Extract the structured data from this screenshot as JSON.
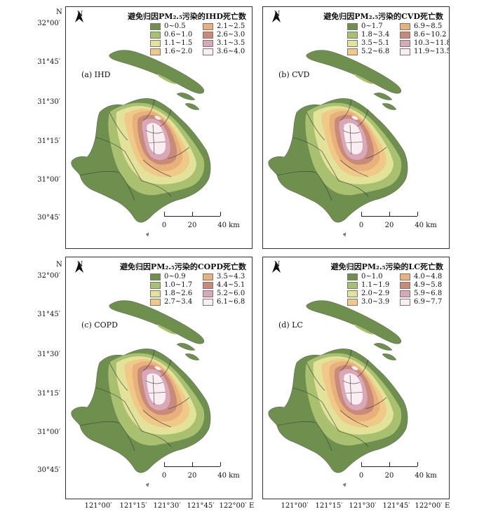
{
  "axes": {
    "north_letter": "N",
    "east_letter": "E",
    "lat_labels": [
      "32°00′",
      "31°45′",
      "31°30′",
      "31°15′",
      "31°00′",
      "30°45′"
    ],
    "lon_labels": [
      "121°00′",
      "121°15′",
      "121°30′",
      "121°45′",
      "122°00′"
    ]
  },
  "north_arrow": "N",
  "scale_bar": {
    "ticks": [
      "0",
      "20",
      "40 km"
    ]
  },
  "panels": [
    {
      "label": "(a) IHD",
      "title": "避免归因PM₂.₅污染的IHD死亡数",
      "legend": [
        "0~0.5",
        "2.1~2.5",
        "0.6~1.0",
        "2.6~3.0",
        "1.1~1.5",
        "3.1~3.5",
        "1.6~2.0",
        "3.6~4.0"
      ]
    },
    {
      "label": "(b) CVD",
      "title": "避免归因PM₂.₅污染的CVD死亡数",
      "legend": [
        "0~1.7",
        "6.9~8.5",
        "1.8~3.4",
        "8.6~10.2",
        "3.5~5.1",
        "10.3~11.8",
        "5.2~6.8",
        "11.9~13.5"
      ]
    },
    {
      "label": "(c) COPD",
      "title": "避免归因PM₂.₅污染的COPD死亡数",
      "legend": [
        "0~0.9",
        "3.5~4.3",
        "1.0~1.7",
        "4.4~5.1",
        "1.8~2.6",
        "5.2~6.0",
        "2.7~3.4",
        "6.1~6.8"
      ]
    },
    {
      "label": "(d) LC",
      "title": "避免归因PM₂.₅污染的LC死亡数",
      "legend": [
        "0~1.0",
        "4.0~4.8",
        "1.1~1.9",
        "4.9~5.8",
        "2.0~2.9",
        "5.9~6.8",
        "3.0~3.9",
        "6.9~7.7"
      ]
    }
  ],
  "legend_colors": [
    "#6f8f4e",
    "#e8b07a",
    "#a9c070",
    "#c98a7a",
    "#e2e29a",
    "#d9a8b8",
    "#f0c888",
    "#fbeef2"
  ],
  "map_colors": {
    "base": "#6f8f4e",
    "l1": "#a9c070",
    "l2": "#e2e29a",
    "l3": "#f0c888",
    "l4": "#e8b07a",
    "l5": "#c98a7a",
    "l6": "#d9a8b8",
    "l7": "#fbeef2"
  }
}
